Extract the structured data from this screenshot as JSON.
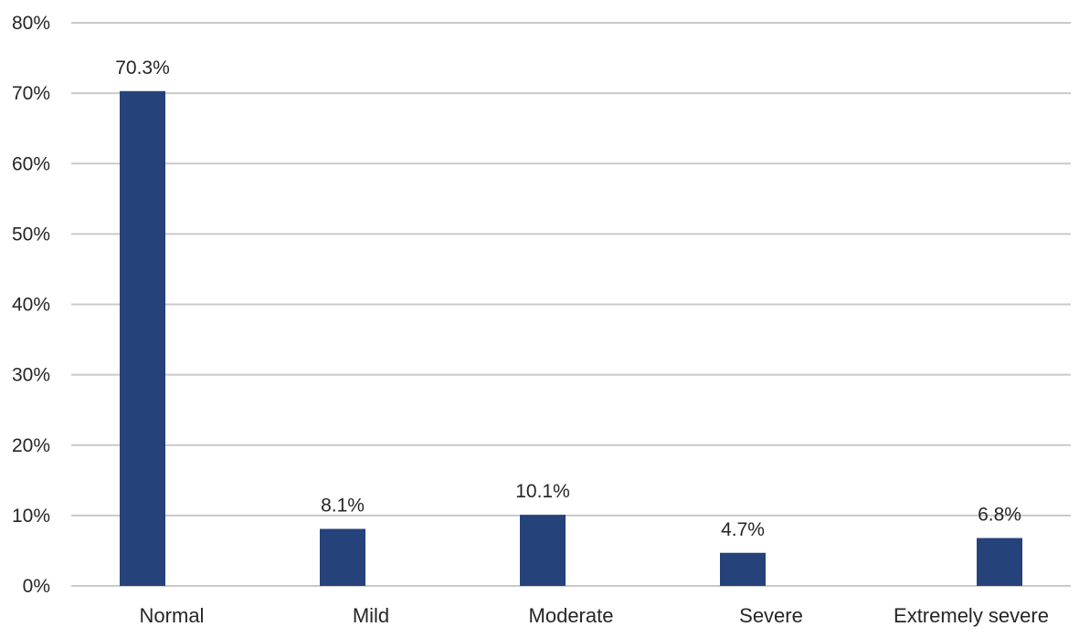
{
  "chart_data": {
    "type": "bar",
    "categories": [
      "Normal",
      "Mild",
      "Moderate",
      "Severe",
      "Extremely severe"
    ],
    "values": [
      70.3,
      8.1,
      10.1,
      4.7,
      6.8
    ],
    "data_labels": [
      "70.3%",
      "8.1%",
      "10.1%",
      "4.7%",
      "6.8%"
    ],
    "ylim": [
      0,
      80
    ],
    "yticks": [
      0,
      10,
      20,
      30,
      40,
      50,
      60,
      70,
      80
    ],
    "ytick_labels": [
      "0%",
      "10%",
      "20%",
      "30%",
      "40%",
      "50%",
      "60%",
      "70%",
      "80%"
    ],
    "grid": true,
    "bar_color": "#25437a"
  }
}
